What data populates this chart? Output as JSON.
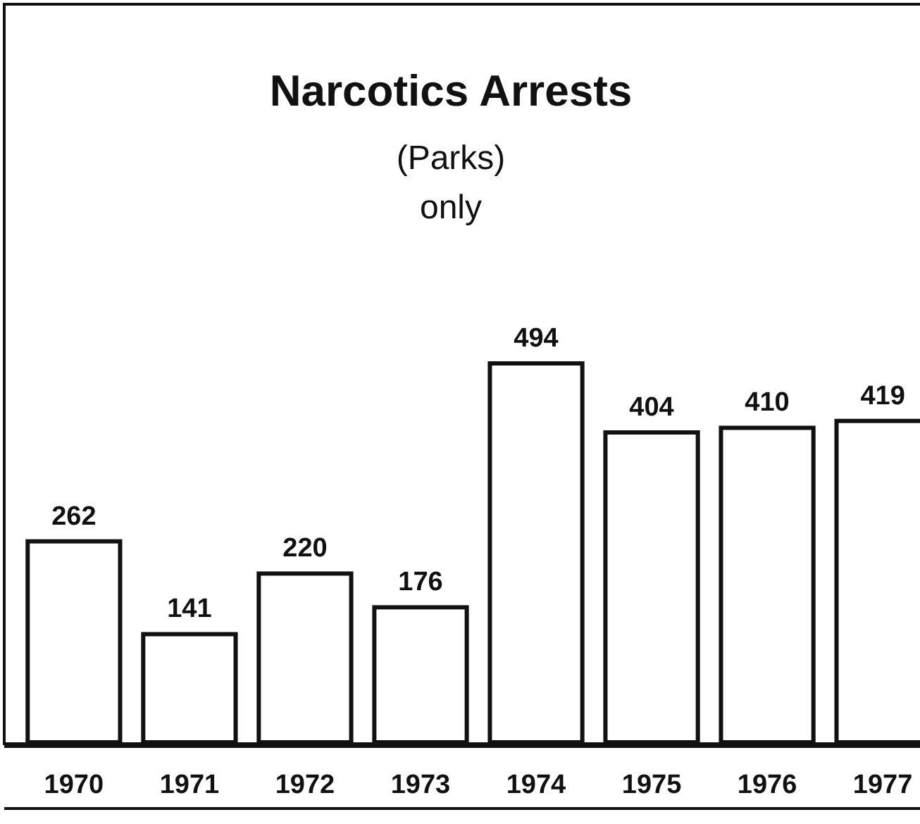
{
  "chart_data": {
    "type": "bar",
    "title": "Narcotics Arrests",
    "subtitle": "(Parks)\nonly",
    "categories": [
      "1970",
      "1971",
      "1972",
      "1973",
      "1974",
      "1975",
      "1976",
      "1977"
    ],
    "values": [
      262,
      141,
      220,
      176,
      494,
      404,
      410,
      419
    ],
    "color": "#ffffff",
    "data_labels": true
  }
}
